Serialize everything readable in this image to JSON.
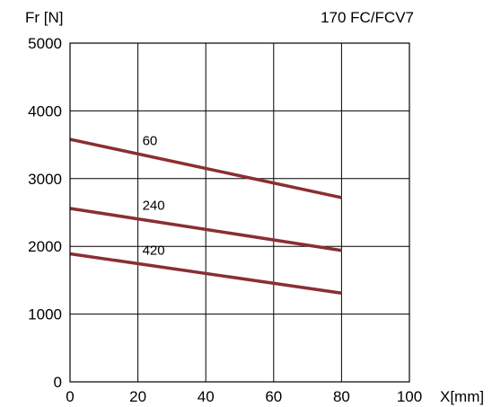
{
  "chart_data": {
    "type": "line",
    "title": "170 FC/FCV7",
    "ylabel": "Fr [N]",
    "xlabel": "X[mm]",
    "xlim": [
      0,
      100
    ],
    "ylim": [
      0,
      5000
    ],
    "x_ticks": [
      "0",
      "20",
      "40",
      "60",
      "80",
      "100"
    ],
    "y_ticks": [
      "0",
      "1000",
      "2000",
      "3000",
      "4000",
      "5000"
    ],
    "grid": true,
    "line_color": "#8b2e32",
    "series": [
      {
        "name": "60",
        "x": [
          0,
          80
        ],
        "y": [
          3580,
          2720
        ]
      },
      {
        "name": "240",
        "x": [
          0,
          80
        ],
        "y": [
          2560,
          1940
        ]
      },
      {
        "name": "420",
        "x": [
          0,
          80
        ],
        "y": [
          1890,
          1310
        ]
      }
    ]
  }
}
